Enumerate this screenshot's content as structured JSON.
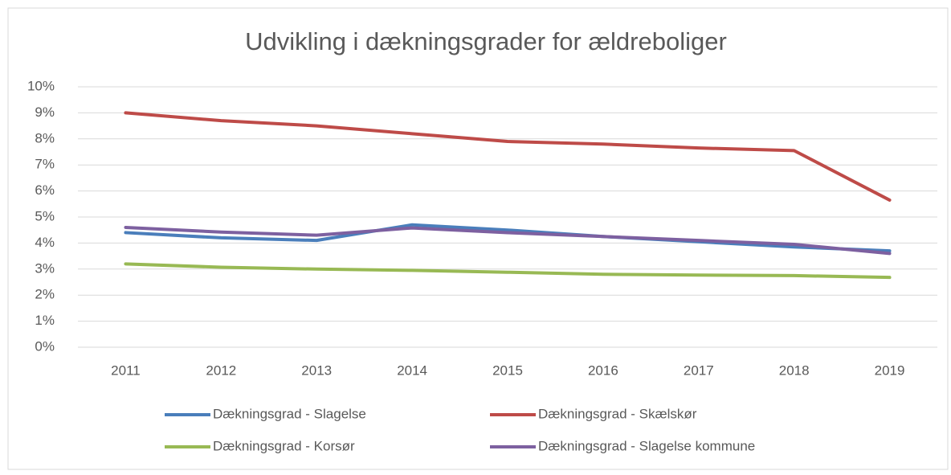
{
  "chart_data": {
    "type": "line",
    "title": "Udvikling i dækningsgrader for ældreboliger",
    "categories": [
      "2011",
      "2012",
      "2013",
      "2014",
      "2015",
      "2016",
      "2017",
      "2018",
      "2019"
    ],
    "series": [
      {
        "name": "Dækningsgrad - Slagelse",
        "color": "#4a7ebb",
        "values": [
          4.4,
          4.2,
          4.1,
          4.7,
          4.5,
          4.25,
          4.05,
          3.85,
          3.7
        ]
      },
      {
        "name": "Dækningsgrad - Skælskør",
        "color": "#be4b48",
        "values": [
          9.0,
          8.7,
          8.5,
          8.2,
          7.9,
          7.8,
          7.65,
          7.55,
          5.65
        ]
      },
      {
        "name": "Dækningsgrad - Korsør",
        "color": "#98b954",
        "values": [
          3.2,
          3.07,
          3.0,
          2.95,
          2.88,
          2.8,
          2.77,
          2.75,
          2.68
        ]
      },
      {
        "name": "Dækningsgrad - Slagelse kommune",
        "color": "#7d60a0",
        "values": [
          4.6,
          4.42,
          4.3,
          4.58,
          4.4,
          4.25,
          4.1,
          3.95,
          3.6
        ]
      }
    ],
    "ylim": [
      0,
      10
    ],
    "yticks": [
      {
        "value": 0,
        "label": "0%"
      },
      {
        "value": 1,
        "label": "1%"
      },
      {
        "value": 2,
        "label": "2%"
      },
      {
        "value": 3,
        "label": "3%"
      },
      {
        "value": 4,
        "label": "4%"
      },
      {
        "value": 5,
        "label": "5%"
      },
      {
        "value": 6,
        "label": "6%"
      },
      {
        "value": 7,
        "label": "7%"
      },
      {
        "value": 8,
        "label": "8%"
      },
      {
        "value": 9,
        "label": "9%"
      },
      {
        "value": 10,
        "label": "10%"
      }
    ],
    "grid": true,
    "legend": "bottom"
  }
}
